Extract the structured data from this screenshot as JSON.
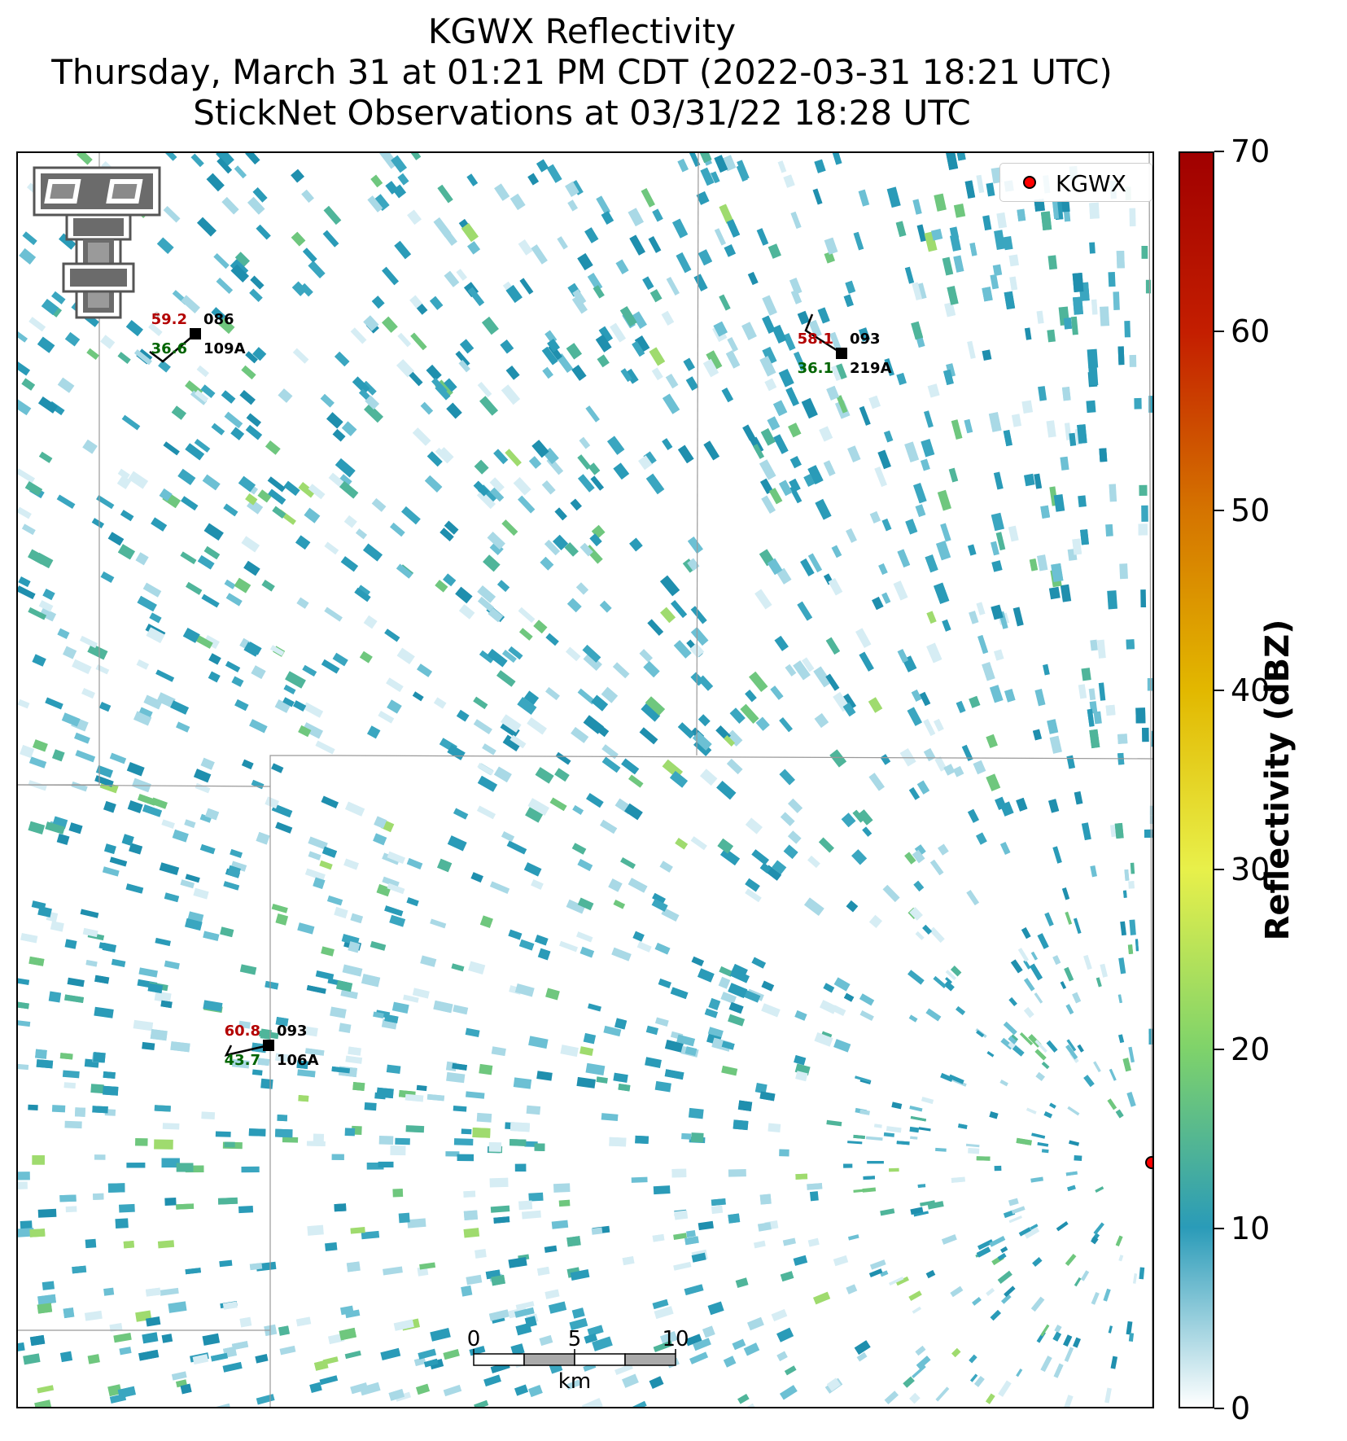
{
  "title": {
    "line1": "KGWX Reflectivity",
    "line2": "Thursday, March 31 at 01:21 PM CDT (2022-03-31 18:21 UTC)",
    "line3": "StickNet Observations at 03/31/22 18:28 UTC"
  },
  "legend": {
    "label": "KGWX",
    "marker_color": "#ff0000"
  },
  "colorbar": {
    "label": "Reflectivity (dBZ)",
    "min": 0,
    "max": 70,
    "ticks": [
      "0",
      "10",
      "20",
      "30",
      "40",
      "50",
      "60",
      "70"
    ],
    "colors": [
      "#ffffff",
      "#2a9bb8",
      "#7fd36a",
      "#e8f04a",
      "#e2b800",
      "#d57400",
      "#c41e00",
      "#a00000"
    ]
  },
  "scalebar": {
    "ticks": [
      "0",
      "5",
      "10"
    ],
    "unit": "km"
  },
  "stations": [
    {
      "id": "109A",
      "temp": "59.2",
      "dewpoint": "36.6",
      "value": "086"
    },
    {
      "id": "219A",
      "temp": "58.1",
      "dewpoint": "36.1",
      "value": "093"
    },
    {
      "id": "106A",
      "temp": "60.8",
      "dewpoint": "43.7",
      "value": "093"
    }
  ],
  "logo": {
    "name": "texas-tech-double-t-logo"
  },
  "colors": {
    "temp": "#b30000",
    "dewpoint": "#006400",
    "station": "#000000",
    "boundary": "#999999"
  }
}
